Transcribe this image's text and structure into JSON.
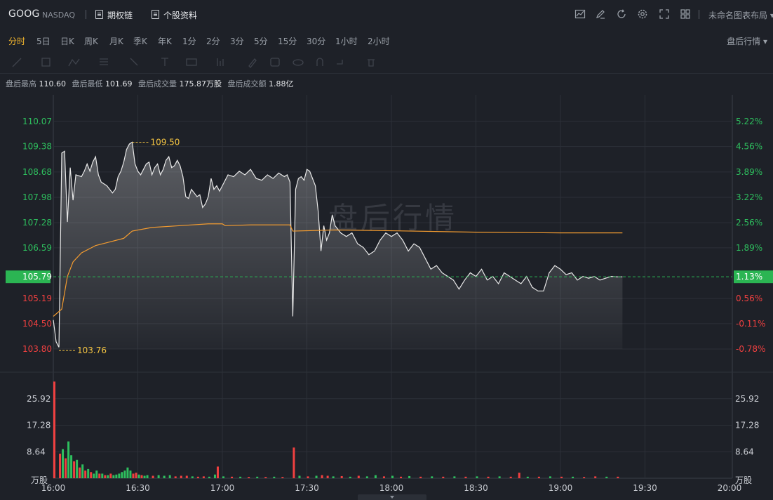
{
  "header": {
    "symbol": "GOOG",
    "exchange": "NASDAQ",
    "links": [
      {
        "label": "期权链",
        "icon": "options-chain-icon"
      },
      {
        "label": "个股资料",
        "icon": "document-icon"
      }
    ],
    "tool_icons": [
      "chart-style-icon",
      "draw-icon",
      "refresh-icon",
      "settings-icon",
      "fullscreen-icon",
      "grid-layout-icon"
    ],
    "layout_label": "未命名图表布局"
  },
  "periods": [
    "分时",
    "5日",
    "日K",
    "周K",
    "月K",
    "季K",
    "年K",
    "1分",
    "2分",
    "3分",
    "5分",
    "15分",
    "30分",
    "1小时",
    "2小时"
  ],
  "active_period": "分时",
  "after_hours_button": "盘后行情",
  "info": [
    {
      "label": "盘后最高",
      "value": "110.60"
    },
    {
      "label": "盘后最低",
      "value": "101.69"
    },
    {
      "label": "盘后成交量",
      "value": "175.87万股"
    },
    {
      "label": "盘后成交额",
      "value": "1.88亿"
    }
  ],
  "colors": {
    "up": "#2ebf5e",
    "down": "#f04040",
    "avg_line": "#f29b30",
    "price_line": "#e8e8e8",
    "marker": "#f5c542",
    "baseline_box": "#2bb553",
    "watermark": "#4a4e57"
  },
  "chart_data": {
    "type": "line",
    "watermark": "盘后行情",
    "price_axis": {
      "ylim": [
        103.8,
        110.07
      ],
      "ticks": [
        "110.07",
        "109.38",
        "108.68",
        "107.98",
        "107.28",
        "106.59",
        "105.79",
        "105.19",
        "104.50",
        "103.80"
      ],
      "pct_ticks": [
        "5.22%",
        "4.56%",
        "3.89%",
        "3.22%",
        "2.56%",
        "1.89%",
        "1.13%",
        "0.56%",
        "-0.11%",
        "-0.78%"
      ]
    },
    "reference_price": 105.79,
    "reference_pct": "1.13%",
    "high_marker": {
      "label": "109.50",
      "time": "16:28",
      "value": 109.5
    },
    "low_marker": {
      "label": "103.76",
      "time": "16:02",
      "value": 103.76
    },
    "x_ticks": [
      "16:00",
      "16:30",
      "17:00",
      "17:30",
      "18:00",
      "18:30",
      "19:00",
      "19:30",
      "20:00"
    ],
    "x_range": [
      "16:00",
      "20:00"
    ],
    "price_series": [
      {
        "x": "16:00",
        "y": 104.6
      },
      {
        "x": "16:01",
        "y": 104.0
      },
      {
        "x": "16:02",
        "y": 103.85
      },
      {
        "x": "16:03",
        "y": 109.2
      },
      {
        "x": "16:04",
        "y": 109.25
      },
      {
        "x": "16:05",
        "y": 107.3
      },
      {
        "x": "16:06",
        "y": 108.8
      },
      {
        "x": "16:07",
        "y": 107.9
      },
      {
        "x": "16:08",
        "y": 108.6
      },
      {
        "x": "16:10",
        "y": 108.55
      },
      {
        "x": "16:11",
        "y": 108.7
      },
      {
        "x": "16:12",
        "y": 108.9
      },
      {
        "x": "16:13",
        "y": 108.7
      },
      {
        "x": "16:14",
        "y": 108.95
      },
      {
        "x": "16:15",
        "y": 109.1
      },
      {
        "x": "16:16",
        "y": 108.6
      },
      {
        "x": "16:17",
        "y": 108.4
      },
      {
        "x": "16:18",
        "y": 108.35
      },
      {
        "x": "16:19",
        "y": 108.3
      },
      {
        "x": "16:20",
        "y": 108.2
      },
      {
        "x": "16:21",
        "y": 108.1
      },
      {
        "x": "16:22",
        "y": 108.2
      },
      {
        "x": "16:23",
        "y": 108.55
      },
      {
        "x": "16:24",
        "y": 108.7
      },
      {
        "x": "16:25",
        "y": 108.95
      },
      {
        "x": "16:26",
        "y": 109.3
      },
      {
        "x": "16:27",
        "y": 109.45
      },
      {
        "x": "16:28",
        "y": 109.5
      },
      {
        "x": "16:29",
        "y": 108.9
      },
      {
        "x": "16:30",
        "y": 108.7
      },
      {
        "x": "16:31",
        "y": 108.6
      },
      {
        "x": "16:32",
        "y": 108.75
      },
      {
        "x": "16:33",
        "y": 108.9
      },
      {
        "x": "16:34",
        "y": 108.95
      },
      {
        "x": "16:35",
        "y": 108.6
      },
      {
        "x": "16:36",
        "y": 108.8
      },
      {
        "x": "16:37",
        "y": 108.9
      },
      {
        "x": "16:38",
        "y": 108.6
      },
      {
        "x": "16:39",
        "y": 108.75
      },
      {
        "x": "16:40",
        "y": 109.0
      },
      {
        "x": "16:41",
        "y": 109.1
      },
      {
        "x": "16:42",
        "y": 108.8
      },
      {
        "x": "16:43",
        "y": 108.85
      },
      {
        "x": "16:44",
        "y": 109.0
      },
      {
        "x": "16:45",
        "y": 108.85
      },
      {
        "x": "16:46",
        "y": 108.55
      },
      {
        "x": "16:47",
        "y": 108.0
      },
      {
        "x": "16:48",
        "y": 107.95
      },
      {
        "x": "16:49",
        "y": 108.2
      },
      {
        "x": "16:50",
        "y": 108.1
      },
      {
        "x": "16:51",
        "y": 108.0
      },
      {
        "x": "16:52",
        "y": 108.05
      },
      {
        "x": "16:53",
        "y": 107.7
      },
      {
        "x": "16:54",
        "y": 107.8
      },
      {
        "x": "16:55",
        "y": 108.0
      },
      {
        "x": "16:56",
        "y": 108.5
      },
      {
        "x": "16:57",
        "y": 108.2
      },
      {
        "x": "16:58",
        "y": 108.3
      },
      {
        "x": "16:59",
        "y": 108.15
      },
      {
        "x": "17:00",
        "y": 108.3
      },
      {
        "x": "17:02",
        "y": 108.6
      },
      {
        "x": "17:04",
        "y": 108.55
      },
      {
        "x": "17:06",
        "y": 108.7
      },
      {
        "x": "17:08",
        "y": 108.6
      },
      {
        "x": "17:10",
        "y": 108.75
      },
      {
        "x": "17:12",
        "y": 108.5
      },
      {
        "x": "17:14",
        "y": 108.45
      },
      {
        "x": "17:16",
        "y": 108.6
      },
      {
        "x": "17:18",
        "y": 108.5
      },
      {
        "x": "17:20",
        "y": 108.65
      },
      {
        "x": "17:22",
        "y": 108.55
      },
      {
        "x": "17:23",
        "y": 108.6
      },
      {
        "x": "17:24",
        "y": 108.4
      },
      {
        "x": "17:25",
        "y": 104.7
      },
      {
        "x": "17:26",
        "y": 108.2
      },
      {
        "x": "17:27",
        "y": 108.5
      },
      {
        "x": "17:28",
        "y": 108.55
      },
      {
        "x": "17:29",
        "y": 108.45
      },
      {
        "x": "17:30",
        "y": 108.75
      },
      {
        "x": "17:31",
        "y": 108.7
      },
      {
        "x": "17:32",
        "y": 108.5
      },
      {
        "x": "17:33",
        "y": 108.3
      },
      {
        "x": "17:34",
        "y": 107.6
      },
      {
        "x": "17:35",
        "y": 106.5
      },
      {
        "x": "17:36",
        "y": 107.2
      },
      {
        "x": "17:37",
        "y": 106.8
      },
      {
        "x": "17:38",
        "y": 107.0
      },
      {
        "x": "17:39",
        "y": 107.5
      },
      {
        "x": "17:40",
        "y": 107.2
      },
      {
        "x": "17:42",
        "y": 107.0
      },
      {
        "x": "17:44",
        "y": 106.9
      },
      {
        "x": "17:46",
        "y": 107.0
      },
      {
        "x": "17:48",
        "y": 106.7
      },
      {
        "x": "17:50",
        "y": 106.6
      },
      {
        "x": "17:52",
        "y": 106.4
      },
      {
        "x": "17:54",
        "y": 106.5
      },
      {
        "x": "17:56",
        "y": 106.8
      },
      {
        "x": "17:58",
        "y": 107.0
      },
      {
        "x": "18:00",
        "y": 106.9
      },
      {
        "x": "18:02",
        "y": 107.0
      },
      {
        "x": "18:04",
        "y": 106.8
      },
      {
        "x": "18:06",
        "y": 106.5
      },
      {
        "x": "18:08",
        "y": 106.7
      },
      {
        "x": "18:10",
        "y": 106.6
      },
      {
        "x": "18:12",
        "y": 106.3
      },
      {
        "x": "18:14",
        "y": 106.0
      },
      {
        "x": "18:16",
        "y": 106.1
      },
      {
        "x": "18:18",
        "y": 105.9
      },
      {
        "x": "18:20",
        "y": 105.8
      },
      {
        "x": "18:22",
        "y": 105.7
      },
      {
        "x": "18:24",
        "y": 105.45
      },
      {
        "x": "18:26",
        "y": 105.7
      },
      {
        "x": "18:28",
        "y": 105.9
      },
      {
        "x": "18:30",
        "y": 105.8
      },
      {
        "x": "18:32",
        "y": 106.0
      },
      {
        "x": "18:34",
        "y": 105.7
      },
      {
        "x": "18:36",
        "y": 105.8
      },
      {
        "x": "18:38",
        "y": 105.6
      },
      {
        "x": "18:40",
        "y": 105.9
      },
      {
        "x": "18:42",
        "y": 105.8
      },
      {
        "x": "18:44",
        "y": 105.7
      },
      {
        "x": "18:46",
        "y": 105.6
      },
      {
        "x": "18:48",
        "y": 105.8
      },
      {
        "x": "18:50",
        "y": 105.5
      },
      {
        "x": "18:52",
        "y": 105.4
      },
      {
        "x": "18:54",
        "y": 105.4
      },
      {
        "x": "18:56",
        "y": 105.9
      },
      {
        "x": "18:58",
        "y": 106.1
      },
      {
        "x": "19:00",
        "y": 106.0
      },
      {
        "x": "19:02",
        "y": 105.85
      },
      {
        "x": "19:04",
        "y": 105.9
      },
      {
        "x": "19:06",
        "y": 105.7
      },
      {
        "x": "19:08",
        "y": 105.8
      },
      {
        "x": "19:10",
        "y": 105.75
      },
      {
        "x": "19:12",
        "y": 105.8
      },
      {
        "x": "19:14",
        "y": 105.7
      },
      {
        "x": "19:16",
        "y": 105.75
      },
      {
        "x": "19:18",
        "y": 105.8
      },
      {
        "x": "19:20",
        "y": 105.79
      },
      {
        "x": "19:22",
        "y": 105.79
      }
    ],
    "avg_series": [
      {
        "x": "16:00",
        "y": 104.7
      },
      {
        "x": "16:03",
        "y": 104.9
      },
      {
        "x": "16:05",
        "y": 105.8
      },
      {
        "x": "16:07",
        "y": 106.2
      },
      {
        "x": "16:10",
        "y": 106.45
      },
      {
        "x": "16:15",
        "y": 106.65
      },
      {
        "x": "16:20",
        "y": 106.75
      },
      {
        "x": "16:25",
        "y": 106.85
      },
      {
        "x": "16:28",
        "y": 107.05
      },
      {
        "x": "16:35",
        "y": 107.15
      },
      {
        "x": "16:45",
        "y": 107.2
      },
      {
        "x": "16:55",
        "y": 107.25
      },
      {
        "x": "17:00",
        "y": 107.25
      },
      {
        "x": "17:01",
        "y": 107.2
      },
      {
        "x": "17:10",
        "y": 107.22
      },
      {
        "x": "17:24",
        "y": 107.22
      },
      {
        "x": "17:25",
        "y": 107.05
      },
      {
        "x": "17:40",
        "y": 107.08
      },
      {
        "x": "18:00",
        "y": 107.06
      },
      {
        "x": "18:30",
        "y": 107.02
      },
      {
        "x": "19:00",
        "y": 107.0
      },
      {
        "x": "19:22",
        "y": 107.0
      }
    ],
    "volume_axis": {
      "ylabel": "万股",
      "ylim": [
        0,
        34.56
      ],
      "ticks": [
        "25.92",
        "17.28",
        "8.64"
      ]
    },
    "volume_series": [
      {
        "x": "16:00",
        "v": 31.5,
        "dir": "down"
      },
      {
        "x": "16:02",
        "v": 8.0,
        "dir": "down"
      },
      {
        "x": "16:03",
        "v": 9.5,
        "dir": "up"
      },
      {
        "x": "16:04",
        "v": 6.5,
        "dir": "down"
      },
      {
        "x": "16:05",
        "v": 12.0,
        "dir": "up"
      },
      {
        "x": "16:06",
        "v": 7.5,
        "dir": "up"
      },
      {
        "x": "16:07",
        "v": 5.5,
        "dir": "down"
      },
      {
        "x": "16:08",
        "v": 6.0,
        "dir": "up"
      },
      {
        "x": "16:09",
        "v": 3.5,
        "dir": "down"
      },
      {
        "x": "16:10",
        "v": 4.5,
        "dir": "up"
      },
      {
        "x": "16:11",
        "v": 2.5,
        "dir": "down"
      },
      {
        "x": "16:12",
        "v": 3.0,
        "dir": "up"
      },
      {
        "x": "16:13",
        "v": 2.0,
        "dir": "down"
      },
      {
        "x": "16:14",
        "v": 1.5,
        "dir": "up"
      },
      {
        "x": "16:15",
        "v": 2.5,
        "dir": "up"
      },
      {
        "x": "16:16",
        "v": 1.5,
        "dir": "down"
      },
      {
        "x": "16:17",
        "v": 1.5,
        "dir": "up"
      },
      {
        "x": "16:18",
        "v": 1.0,
        "dir": "down"
      },
      {
        "x": "16:19",
        "v": 1.0,
        "dir": "up"
      },
      {
        "x": "16:20",
        "v": 1.5,
        "dir": "down"
      },
      {
        "x": "16:21",
        "v": 1.0,
        "dir": "up"
      },
      {
        "x": "16:22",
        "v": 1.2,
        "dir": "up"
      },
      {
        "x": "16:23",
        "v": 1.5,
        "dir": "up"
      },
      {
        "x": "16:24",
        "v": 2.0,
        "dir": "up"
      },
      {
        "x": "16:25",
        "v": 2.5,
        "dir": "up"
      },
      {
        "x": "16:26",
        "v": 3.5,
        "dir": "up"
      },
      {
        "x": "16:27",
        "v": 2.5,
        "dir": "up"
      },
      {
        "x": "16:28",
        "v": 1.5,
        "dir": "down"
      },
      {
        "x": "16:29",
        "v": 1.8,
        "dir": "down"
      },
      {
        "x": "16:30",
        "v": 1.2,
        "dir": "up"
      },
      {
        "x": "16:31",
        "v": 1.0,
        "dir": "down"
      },
      {
        "x": "16:32",
        "v": 0.8,
        "dir": "up"
      },
      {
        "x": "16:33",
        "v": 1.0,
        "dir": "up"
      },
      {
        "x": "16:35",
        "v": 0.8,
        "dir": "down"
      },
      {
        "x": "16:37",
        "v": 1.0,
        "dir": "up"
      },
      {
        "x": "16:39",
        "v": 0.8,
        "dir": "up"
      },
      {
        "x": "16:41",
        "v": 1.0,
        "dir": "up"
      },
      {
        "x": "16:43",
        "v": 0.6,
        "dir": "down"
      },
      {
        "x": "16:45",
        "v": 0.8,
        "dir": "down"
      },
      {
        "x": "16:47",
        "v": 0.8,
        "dir": "down"
      },
      {
        "x": "16:49",
        "v": 0.6,
        "dir": "up"
      },
      {
        "x": "16:51",
        "v": 0.5,
        "dir": "down"
      },
      {
        "x": "16:53",
        "v": 0.6,
        "dir": "down"
      },
      {
        "x": "16:55",
        "v": 0.5,
        "dir": "up"
      },
      {
        "x": "16:57",
        "v": 1.2,
        "dir": "up"
      },
      {
        "x": "16:58",
        "v": 3.8,
        "dir": "down"
      },
      {
        "x": "17:00",
        "v": 0.6,
        "dir": "up"
      },
      {
        "x": "17:03",
        "v": 0.5,
        "dir": "down"
      },
      {
        "x": "17:06",
        "v": 0.5,
        "dir": "up"
      },
      {
        "x": "17:09",
        "v": 0.4,
        "dir": "down"
      },
      {
        "x": "17:12",
        "v": 0.5,
        "dir": "up"
      },
      {
        "x": "17:15",
        "v": 0.4,
        "dir": "down"
      },
      {
        "x": "17:18",
        "v": 0.5,
        "dir": "up"
      },
      {
        "x": "17:21",
        "v": 0.4,
        "dir": "down"
      },
      {
        "x": "17:25",
        "v": 10.0,
        "dir": "down"
      },
      {
        "x": "17:27",
        "v": 0.8,
        "dir": "up"
      },
      {
        "x": "17:30",
        "v": 0.6,
        "dir": "down"
      },
      {
        "x": "17:33",
        "v": 0.8,
        "dir": "up"
      },
      {
        "x": "17:35",
        "v": 1.0,
        "dir": "down"
      },
      {
        "x": "17:37",
        "v": 0.8,
        "dir": "down"
      },
      {
        "x": "17:39",
        "v": 0.6,
        "dir": "up"
      },
      {
        "x": "17:42",
        "v": 0.7,
        "dir": "down"
      },
      {
        "x": "17:45",
        "v": 0.5,
        "dir": "up"
      },
      {
        "x": "17:48",
        "v": 0.8,
        "dir": "down"
      },
      {
        "x": "17:51",
        "v": 0.6,
        "dir": "up"
      },
      {
        "x": "17:54",
        "v": 1.0,
        "dir": "up"
      },
      {
        "x": "17:57",
        "v": 0.6,
        "dir": "down"
      },
      {
        "x": "18:00",
        "v": 0.8,
        "dir": "up"
      },
      {
        "x": "18:03",
        "v": 0.5,
        "dir": "down"
      },
      {
        "x": "18:06",
        "v": 0.7,
        "dir": "up"
      },
      {
        "x": "18:10",
        "v": 0.5,
        "dir": "down"
      },
      {
        "x": "18:14",
        "v": 0.6,
        "dir": "up"
      },
      {
        "x": "18:18",
        "v": 0.5,
        "dir": "down"
      },
      {
        "x": "18:22",
        "v": 0.6,
        "dir": "up"
      },
      {
        "x": "18:26",
        "v": 0.5,
        "dir": "down"
      },
      {
        "x": "18:30",
        "v": 0.6,
        "dir": "up"
      },
      {
        "x": "18:34",
        "v": 0.5,
        "dir": "down"
      },
      {
        "x": "18:38",
        "v": 0.6,
        "dir": "up"
      },
      {
        "x": "18:42",
        "v": 0.5,
        "dir": "down"
      },
      {
        "x": "18:45",
        "v": 1.8,
        "dir": "down"
      },
      {
        "x": "18:48",
        "v": 0.5,
        "dir": "up"
      },
      {
        "x": "18:52",
        "v": 0.5,
        "dir": "down"
      },
      {
        "x": "18:56",
        "v": 0.6,
        "dir": "up"
      },
      {
        "x": "19:00",
        "v": 0.5,
        "dir": "down"
      },
      {
        "x": "19:04",
        "v": 0.5,
        "dir": "up"
      },
      {
        "x": "19:08",
        "v": 0.4,
        "dir": "down"
      },
      {
        "x": "19:12",
        "v": 0.6,
        "dir": "down"
      },
      {
        "x": "19:16",
        "v": 0.5,
        "dir": "up"
      },
      {
        "x": "19:20",
        "v": 0.5,
        "dir": "down"
      }
    ]
  }
}
